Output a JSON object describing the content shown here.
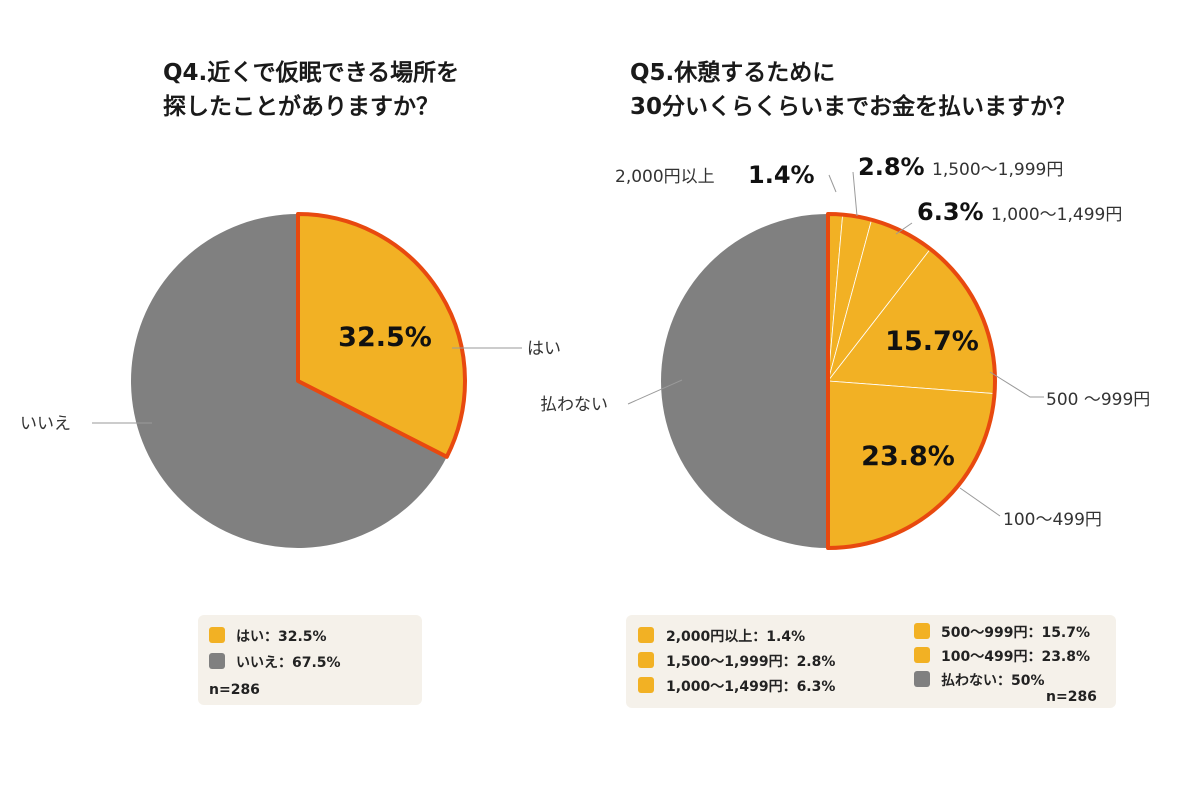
{
  "colors": {
    "yes_fill": "#f2b124",
    "no_fill": "#808080",
    "highlight_stroke": "#e8490f",
    "legend_bg": "#f5f1ea"
  },
  "chart_data": [
    {
      "type": "pie",
      "title": "Q4.近くで仮眠できる場所を探したことがありますか？",
      "title_lines": [
        "Q4.近くで仮眠できる場所を",
        "探したことがありますか？"
      ],
      "n": "n=286",
      "slices": [
        {
          "name": "はい",
          "value": 32.5,
          "pct_label": "32.5%",
          "legend": "はい：32.5%",
          "color": "#f2b124"
        },
        {
          "name": "いいえ",
          "value": 67.5,
          "pct_label": "",
          "legend": "いいえ：67.5%",
          "color": "#808080"
        }
      ]
    },
    {
      "type": "pie",
      "title": "Q5.休憩するために30分いくらくらいまでお金を払いますか？",
      "title_lines": [
        "Q5.休憩するために",
        "30分いくらくらいまでお金を払いますか？"
      ],
      "n": "n=286",
      "slices": [
        {
          "name": "2,000円以上",
          "value": 1.4,
          "pct_label": "1.4%",
          "legend": "2,000円以上：1.4%",
          "color": "#f2b124"
        },
        {
          "name": "1,500～1,999円",
          "value": 2.8,
          "pct_label": "2.8%",
          "legend": "1,500～1,999円：2.8%",
          "color": "#f2b124"
        },
        {
          "name": "1,000～1,499円",
          "value": 6.3,
          "pct_label": "6.3%",
          "legend": "1,000～1,499円：6.3%",
          "color": "#f2b124"
        },
        {
          "name": "500 ～999円",
          "value": 15.7,
          "pct_label": "15.7%",
          "legend": "500～999円：15.7%",
          "color": "#f2b124"
        },
        {
          "name": "100～499円",
          "value": 23.8,
          "pct_label": "23.8%",
          "legend": "100～499円：23.8%",
          "color": "#f2b124"
        },
        {
          "name": "払わない",
          "value": 50,
          "pct_label": "",
          "legend": "払わない：50%",
          "color": "#808080"
        }
      ]
    }
  ]
}
